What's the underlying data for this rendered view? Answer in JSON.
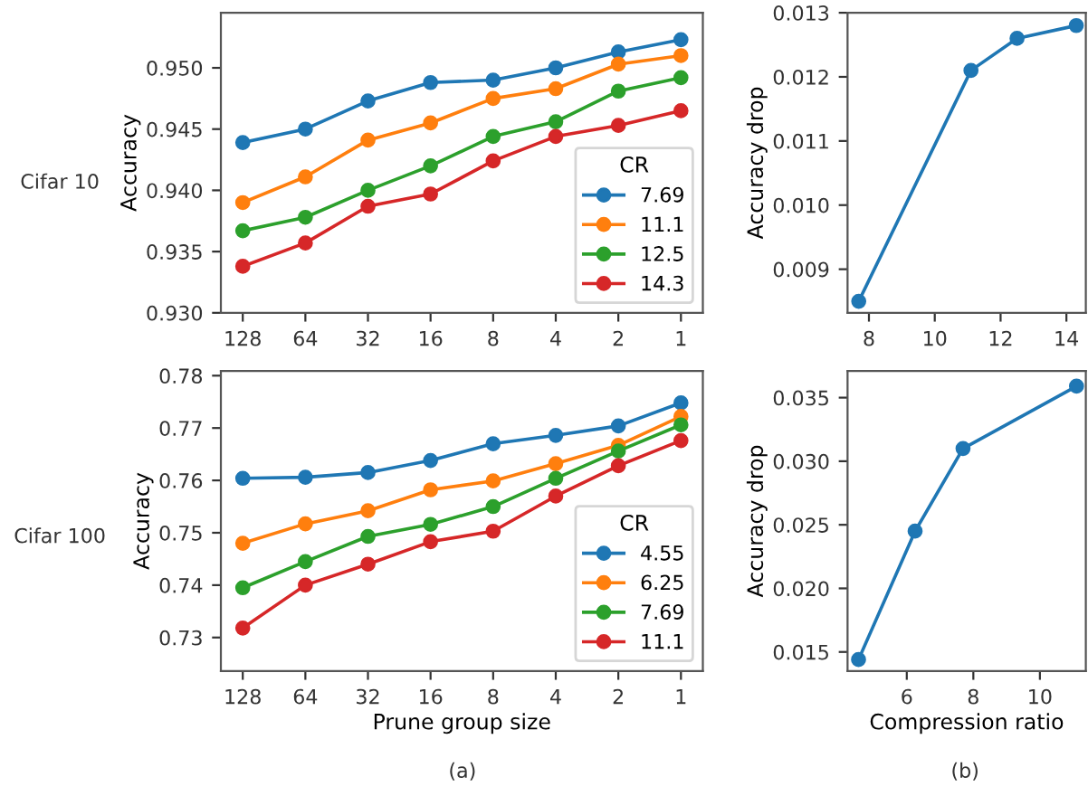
{
  "chart_data": [
    {
      "type": "line",
      "ylabel": "Accuracy",
      "legend_title": "CR",
      "legend": "bottom right",
      "marker": "circle",
      "grid": false,
      "annotations": [
        "Cifar 10"
      ],
      "categories": [
        "128",
        "64",
        "32",
        "16",
        "8",
        "4",
        "2",
        "1"
      ],
      "ylim": [
        0.93,
        0.9545
      ],
      "yticks": [
        {
          "value": 0.93,
          "label": "0.930"
        },
        {
          "value": 0.935,
          "label": "0.935"
        },
        {
          "value": 0.94,
          "label": "0.940"
        },
        {
          "value": 0.945,
          "label": "0.945"
        },
        {
          "value": 0.95,
          "label": "0.950"
        }
      ],
      "series": [
        {
          "name": "7.69",
          "color": "#1f77b4",
          "values": [
            0.9439,
            0.945,
            0.9473,
            0.9488,
            0.949,
            0.95,
            0.9513,
            0.9523
          ]
        },
        {
          "name": "11.1",
          "color": "#ff7f0e",
          "values": [
            0.939,
            0.9411,
            0.9441,
            0.9455,
            0.9475,
            0.9483,
            0.9503,
            0.951
          ]
        },
        {
          "name": "12.5",
          "color": "#2ca02c",
          "values": [
            0.9367,
            0.9378,
            0.94,
            0.942,
            0.9444,
            0.9456,
            0.9481,
            0.9492
          ]
        },
        {
          "name": "14.3",
          "color": "#d62728",
          "values": [
            0.9338,
            0.9357,
            0.9387,
            0.9397,
            0.9424,
            0.9444,
            0.9453,
            0.9465
          ]
        }
      ]
    },
    {
      "type": "line",
      "ylabel": "Accuracy drop",
      "marker": "circle",
      "grid": false,
      "x": [
        7.69,
        11.1,
        12.5,
        14.3
      ],
      "xlim": [
        7.35,
        14.59
      ],
      "xticks": [
        8,
        10,
        12,
        14
      ],
      "ylim": [
        0.00832,
        0.013
      ],
      "yticks": [
        {
          "value": 0.009,
          "label": "0.009"
        },
        {
          "value": 0.01,
          "label": "0.010"
        },
        {
          "value": 0.011,
          "label": "0.011"
        },
        {
          "value": 0.012,
          "label": "0.012"
        },
        {
          "value": 0.013,
          "label": "0.013"
        }
      ],
      "series": [
        {
          "color": "#1f77b4",
          "values": [
            0.0085,
            0.0121,
            0.0126,
            0.0128
          ]
        }
      ]
    },
    {
      "type": "line",
      "xlabel": "Prune group size",
      "ylabel": "Accuracy",
      "legend_title": "CR",
      "legend": "bottom right",
      "marker": "circle",
      "grid": false,
      "annotations": [
        "Cifar 100",
        "(a)"
      ],
      "categories": [
        "128",
        "64",
        "32",
        "16",
        "8",
        "4",
        "2",
        "1"
      ],
      "ylim": [
        0.7236,
        0.7809
      ],
      "yticks": [
        0.73,
        0.74,
        0.75,
        0.76,
        0.77,
        0.78
      ],
      "series": [
        {
          "name": "4.55",
          "color": "#1f77b4",
          "values": [
            0.7604,
            0.7606,
            0.7615,
            0.7638,
            0.767,
            0.7686,
            0.7704,
            0.7748
          ]
        },
        {
          "name": "6.25",
          "color": "#ff7f0e",
          "values": [
            0.748,
            0.7517,
            0.7542,
            0.7582,
            0.7599,
            0.7632,
            0.7667,
            0.7722
          ]
        },
        {
          "name": "7.69",
          "color": "#2ca02c",
          "values": [
            0.7395,
            0.7445,
            0.7493,
            0.7516,
            0.755,
            0.7604,
            0.7656,
            0.7706
          ]
        },
        {
          "name": "11.1",
          "color": "#d62728",
          "values": [
            0.7318,
            0.74,
            0.744,
            0.7483,
            0.7503,
            0.757,
            0.7628,
            0.7676
          ]
        }
      ]
    },
    {
      "type": "line",
      "xlabel": "Compression ratio",
      "ylabel": "Accuracy drop",
      "marker": "circle",
      "grid": false,
      "annotations": [
        "(b)"
      ],
      "x": [
        4.55,
        6.25,
        7.69,
        11.1
      ],
      "xlim": [
        4.22,
        11.38
      ],
      "xticks": [
        6,
        8,
        10
      ],
      "ylim": [
        0.0135,
        0.0371
      ],
      "yticks": [
        {
          "value": 0.015,
          "label": "0.015"
        },
        {
          "value": 0.02,
          "label": "0.020"
        },
        {
          "value": 0.025,
          "label": "0.025"
        },
        {
          "value": 0.03,
          "label": "0.030"
        },
        {
          "value": 0.035,
          "label": "0.035"
        }
      ],
      "series": [
        {
          "color": "#1f77b4",
          "values": [
            0.0144,
            0.0245,
            0.031,
            0.0359
          ]
        }
      ]
    }
  ]
}
